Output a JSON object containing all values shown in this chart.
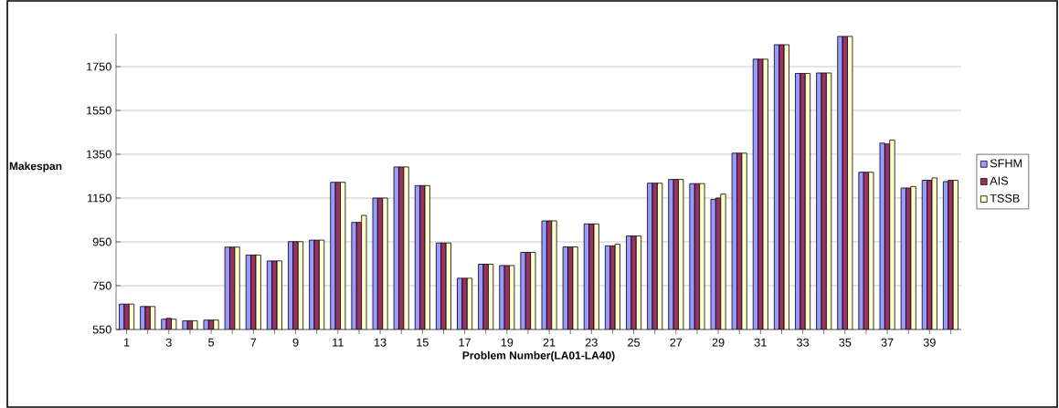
{
  "chart_data": {
    "type": "bar",
    "xlabel": "Problem Number(LA01-LA40)",
    "ylabel": "Makespan",
    "categories": [
      "1",
      null,
      "3",
      null,
      "5",
      null,
      "7",
      null,
      "9",
      null,
      "11",
      null,
      "13",
      null,
      "15",
      null,
      "17",
      null,
      "19",
      null,
      "21",
      null,
      "23",
      null,
      "25",
      null,
      "27",
      null,
      "29",
      null,
      "31",
      null,
      "33",
      null,
      "35",
      null,
      "37",
      null,
      "39",
      null
    ],
    "series": [
      {
        "name": "SFHM",
        "color": "#9999ff",
        "values": [
          666,
          655,
          597,
          590,
          593,
          926,
          890,
          863,
          951,
          958,
          1222,
          1039,
          1150,
          1292,
          1207,
          945,
          784,
          848,
          842,
          902,
          1046,
          927,
          1032,
          932,
          977,
          1218,
          1235,
          1216,
          1144,
          1355,
          1784,
          1850,
          1719,
          1721,
          1888,
          1268,
          1401,
          1196,
          1231,
          1225
        ]
      },
      {
        "name": "AIS",
        "color": "#993366",
        "values": [
          666,
          655,
          601,
          590,
          593,
          926,
          890,
          863,
          951,
          958,
          1222,
          1039,
          1150,
          1292,
          1207,
          945,
          784,
          848,
          842,
          902,
          1046,
          927,
          1032,
          932,
          977,
          1218,
          1235,
          1216,
          1150,
          1355,
          1784,
          1850,
          1719,
          1721,
          1888,
          1268,
          1397,
          1196,
          1231,
          1231
        ]
      },
      {
        "name": "TSSB",
        "color": "#ffffcc",
        "values": [
          666,
          655,
          597,
          590,
          593,
          926,
          890,
          863,
          951,
          958,
          1222,
          1071,
          1150,
          1292,
          1207,
          945,
          784,
          848,
          842,
          902,
          1046,
          927,
          1032,
          939,
          977,
          1218,
          1235,
          1216,
          1168,
          1355,
          1784,
          1850,
          1719,
          1721,
          1888,
          1268,
          1415,
          1203,
          1242,
          1231
        ]
      }
    ],
    "ylim": [
      550,
      1900
    ],
    "yticks": [
      550,
      750,
      950,
      1150,
      1350,
      1550,
      1750
    ],
    "grid": "y",
    "legend": "right"
  }
}
